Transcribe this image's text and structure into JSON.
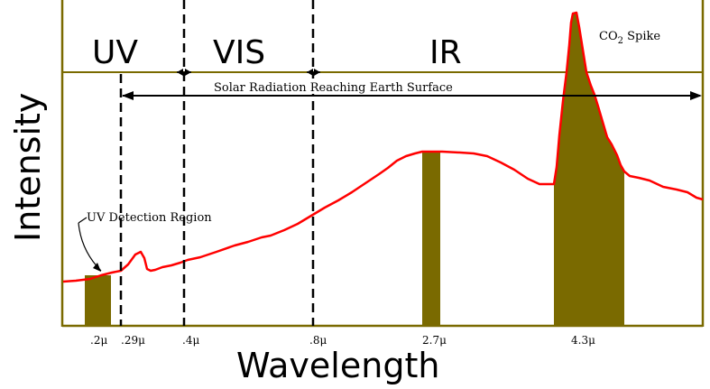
{
  "y_axis_label": "Intensity",
  "x_axis_label": "Wavelength",
  "bands": {
    "uv": "UV",
    "vis": "VIS",
    "ir": "IR"
  },
  "annotations": {
    "solar_radiation": "Solar Radiation Reaching Earth Surface",
    "uv_detection": "UV Detection Region",
    "co2_spike_prefix": "CO",
    "co2_spike_sub": "2",
    "co2_spike_suffix": " Spike"
  },
  "wavelength_ticks": [
    ".2μ",
    ".29μ",
    ".4μ",
    ".8μ",
    "2.7μ",
    "4.3μ"
  ],
  "colors": {
    "frame": "#7a6a00",
    "highlight_fill": "#7a6a00",
    "spectrum_curve": "#ff0000",
    "boundary_lines": "#000000"
  }
}
